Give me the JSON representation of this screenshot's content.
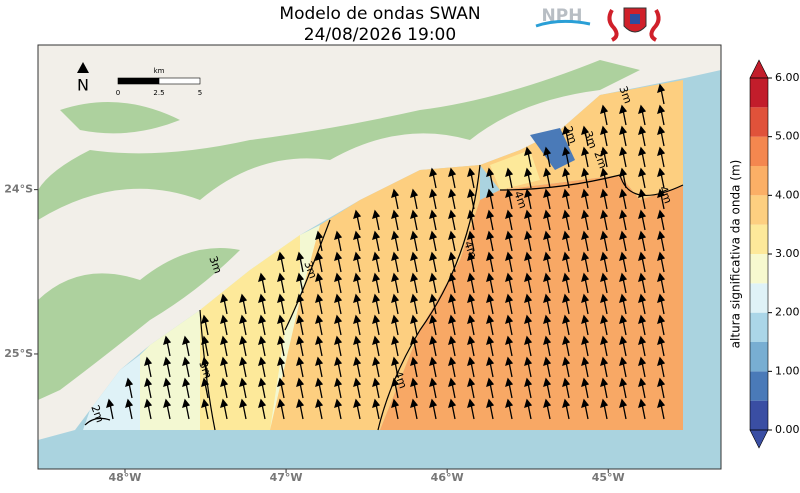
{
  "title": [
    "Modelo de ondas SWAN",
    "24/08/2026 19:00"
  ],
  "logo_text": "NPH",
  "map": {
    "xlim": [
      -48.54,
      -44.3
    ],
    "ylim": [
      -25.7,
      -23.12
    ],
    "lon_ticks": [
      {
        "value": -48,
        "label": "48°W"
      },
      {
        "value": -47,
        "label": "47°W"
      },
      {
        "value": -46,
        "label": "46°W"
      },
      {
        "value": -45,
        "label": "45°W"
      }
    ],
    "lat_ticks": [
      {
        "value": -24,
        "label": "24°S"
      },
      {
        "value": -25,
        "label": "25°S"
      }
    ]
  },
  "north": "N",
  "scale_bar": {
    "unit": "km",
    "ticks": [
      0,
      2.5,
      5
    ]
  },
  "contour_labels": [
    "2m",
    "3m",
    "3m",
    "3m",
    "4m",
    "4m",
    "4m",
    "3m",
    "2m",
    "3m",
    "4m",
    "2m"
  ],
  "colorbar": {
    "label": "altura significativa da onda (m)",
    "levels": [
      0,
      0.5,
      1,
      1.5,
      2,
      2.5,
      3,
      3.5,
      4,
      4.5,
      5,
      5.5,
      6
    ],
    "colors": [
      "#3a4ea3",
      "#4a7ab8",
      "#78aed2",
      "#abd6e8",
      "#dff2f7",
      "#f7f9cf",
      "#fde99a",
      "#fdcf80",
      "#fbaf66",
      "#f4874f",
      "#e0523a",
      "#c21d2b"
    ],
    "ticks": [
      {
        "value": 0,
        "label": "0.00"
      },
      {
        "value": 1,
        "label": "1.00"
      },
      {
        "value": 2,
        "label": "2.00"
      },
      {
        "value": 3,
        "label": "3.00"
      },
      {
        "value": 4,
        "label": "4.00"
      },
      {
        "value": 5,
        "label": "5.00"
      },
      {
        "value": 6,
        "label": "6.00"
      }
    ]
  }
}
